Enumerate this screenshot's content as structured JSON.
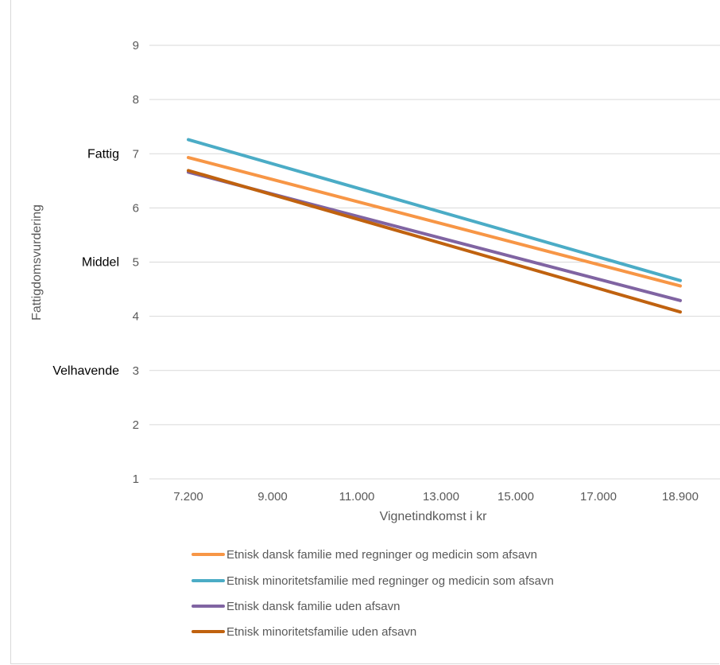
{
  "chart_data": {
    "type": "line",
    "title": "",
    "xlabel": "Vignetindkomst i kr",
    "ylabel": "Fattigdomsvurdering",
    "x_tick_labels": [
      "7.200",
      "9.000",
      "11.000",
      "13.000",
      "15.000",
      "17.000",
      "18.900"
    ],
    "x_values": [
      7200,
      18900
    ],
    "xlim": [
      7200,
      18900
    ],
    "y_ticks": [
      1,
      2,
      3,
      4,
      5,
      6,
      7,
      8,
      9
    ],
    "y_tick_labels": [
      "1",
      "2",
      "3",
      "4",
      "5",
      "6",
      "7",
      "8",
      "9"
    ],
    "ylim": [
      1,
      9
    ],
    "grid": true,
    "legend_position": "bottom",
    "side_labels": [
      {
        "text": "Fattig",
        "y": 7
      },
      {
        "text": "Middel",
        "y": 5
      },
      {
        "text": "Velhavende",
        "y": 3
      }
    ],
    "series": [
      {
        "name": "Etnisk dansk familie med regninger og medicin som afsavn",
        "color": "#f79646",
        "values": [
          6.93,
          4.56
        ]
      },
      {
        "name": "Etnisk minoritetsfamilie med regninger og medicin som afsavn",
        "color": "#4bacc6",
        "values": [
          7.26,
          4.66
        ]
      },
      {
        "name": "Etnisk dansk familie uden afsavn",
        "color": "#8064a2",
        "values": [
          6.66,
          4.29
        ]
      },
      {
        "name": "Etnisk minoritetsfamilie uden afsavn",
        "color": "#c0620f",
        "values": [
          6.69,
          4.08
        ]
      }
    ]
  }
}
